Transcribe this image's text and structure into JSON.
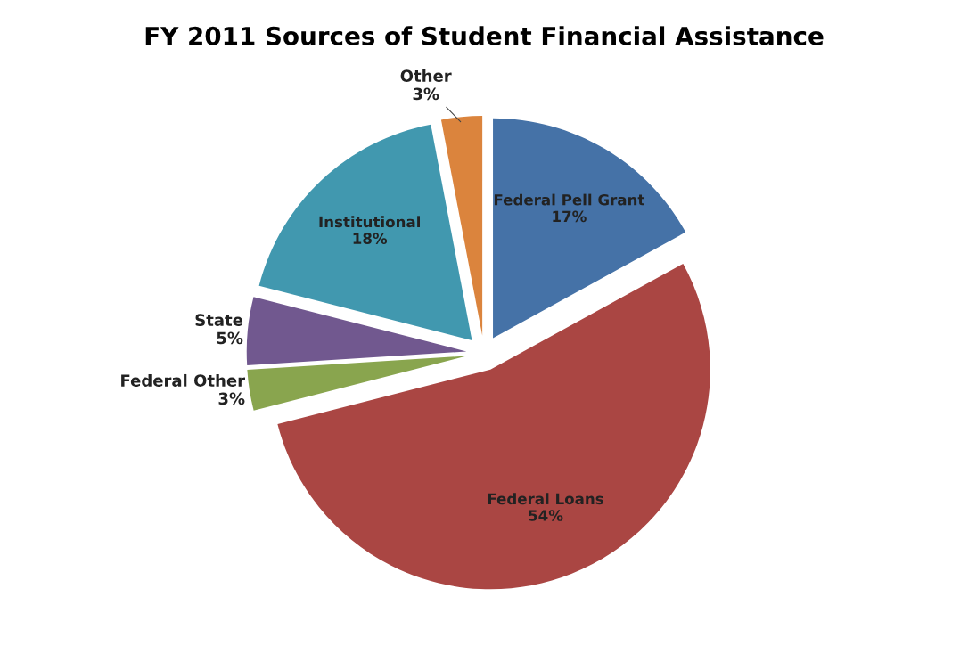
{
  "chart_data": {
    "type": "pie",
    "title": "FY 2011 Sources of Student Financial Assistance",
    "categories": [
      "Federal Pell Grant",
      "Federal Loans",
      "Federal Other",
      "State",
      "Institutional",
      "Other"
    ],
    "values": [
      17,
      54,
      3,
      5,
      18,
      3
    ],
    "value_labels": [
      "17%",
      "54%",
      "3%",
      "5%",
      "18%",
      "3%"
    ],
    "colors": [
      "#4572a7",
      "#aa4643",
      "#89a54e",
      "#71588f",
      "#4198af",
      "#db843d"
    ],
    "legend": false
  }
}
